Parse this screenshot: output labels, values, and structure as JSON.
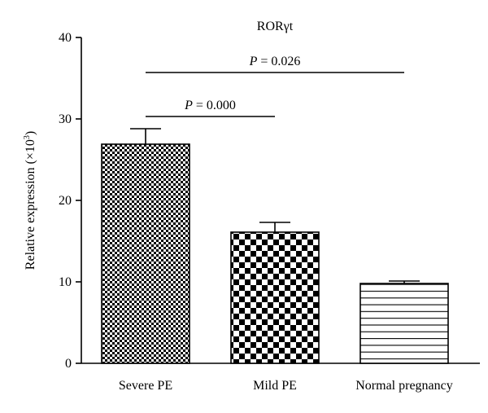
{
  "chart_data": {
    "type": "bar",
    "title": "RORγt",
    "ylabel": "Relative expression (×10³)",
    "ylabel_main": "Relative expression (×10",
    "ylabel_exp": "3",
    "ylabel_close": ")",
    "xlabel": "",
    "ylim": [
      0,
      40
    ],
    "yticks": [
      0,
      10,
      20,
      30,
      40
    ],
    "ytick_labels": [
      "0",
      "10",
      "20",
      "30",
      "40"
    ],
    "categories": [
      "Severe PE",
      "Mild PE",
      "Normal pregnancy"
    ],
    "values": [
      26.9,
      16.1,
      9.8
    ],
    "errors": [
      1.9,
      1.2,
      0.3
    ],
    "patterns": [
      "fine-checker",
      "coarse-checker",
      "horizontal-lines"
    ],
    "grid": false,
    "annotations": [
      {
        "p_label": "P",
        "p_value": " = 0.000",
        "from": 0,
        "to": 1,
        "y": 30.3
      },
      {
        "p_label": "P",
        "p_value": " = 0.026",
        "from": 0,
        "to": 2,
        "y": 35.7
      }
    ]
  }
}
